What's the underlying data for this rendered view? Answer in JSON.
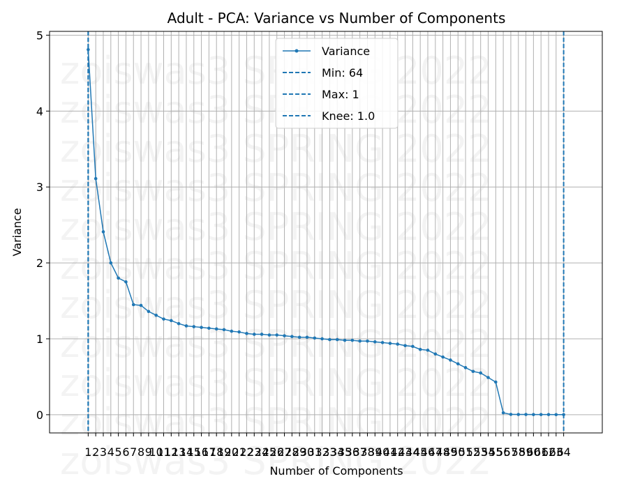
{
  "chart_data": {
    "type": "line",
    "title": "Adult - PCA: Variance vs Number of Components",
    "xlabel": "Number of Components",
    "ylabel": "Variance",
    "x": [
      1,
      2,
      3,
      4,
      5,
      6,
      7,
      8,
      9,
      10,
      11,
      12,
      13,
      14,
      15,
      16,
      17,
      18,
      19,
      20,
      21,
      22,
      23,
      24,
      25,
      26,
      27,
      28,
      29,
      30,
      31,
      32,
      33,
      34,
      35,
      36,
      37,
      38,
      39,
      40,
      41,
      42,
      43,
      44,
      45,
      46,
      47,
      48,
      49,
      50,
      51,
      52,
      53,
      54,
      55,
      56,
      57,
      58,
      59,
      60,
      61,
      62,
      63,
      64
    ],
    "x_tick_labels": [
      "1",
      "2",
      "3",
      "4",
      "5",
      "6",
      "7",
      "8",
      "9",
      "10",
      "11",
      "12",
      "13",
      "14",
      "15",
      "16",
      "17",
      "18",
      "19",
      "20",
      "21",
      "22",
      "23",
      "24",
      "25",
      "26",
      "27",
      "28",
      "29",
      "30",
      "31",
      "32",
      "33",
      "34",
      "35",
      "36",
      "37",
      "38",
      "39",
      "40",
      "41",
      "42",
      "43",
      "44",
      "45",
      "46",
      "47",
      "48",
      "49",
      "50",
      "51",
      "52",
      "53",
      "54",
      "55",
      "56",
      "57",
      "58",
      "59",
      "60",
      "61",
      "62",
      "63",
      "64"
    ],
    "y_ticks": [
      0,
      1,
      2,
      3,
      4,
      5
    ],
    "y_tick_labels": [
      "0",
      "1",
      "2",
      "3",
      "4",
      "5"
    ],
    "xlim": [
      -4.12,
      69.12
    ],
    "ylim": [
      -0.24,
      5.05
    ],
    "grid": true,
    "legend_placement": "upper center",
    "series": [
      {
        "name": "Variance",
        "color": "#1f77b4",
        "marker": "dot",
        "values": [
          4.81,
          3.11,
          2.41,
          2.0,
          1.8,
          1.75,
          1.45,
          1.44,
          1.36,
          1.31,
          1.26,
          1.24,
          1.2,
          1.17,
          1.16,
          1.15,
          1.14,
          1.13,
          1.12,
          1.1,
          1.09,
          1.07,
          1.06,
          1.06,
          1.05,
          1.05,
          1.04,
          1.03,
          1.02,
          1.02,
          1.01,
          1.0,
          0.99,
          0.99,
          0.98,
          0.98,
          0.97,
          0.97,
          0.96,
          0.95,
          0.94,
          0.93,
          0.91,
          0.9,
          0.86,
          0.85,
          0.8,
          0.76,
          0.72,
          0.67,
          0.62,
          0.57,
          0.55,
          0.49,
          0.43,
          0.025,
          0.004,
          0.003,
          0.003,
          0.002,
          0.002,
          0.002,
          0.001,
          0.001
        ]
      }
    ],
    "vlines": [
      {
        "label": "Min: 64",
        "x": 64,
        "color": "#1f77b4",
        "style": "dashed"
      },
      {
        "label": "Max: 1",
        "x": 1,
        "color": "#1f77b4",
        "style": "dashed"
      },
      {
        "label": "Knee: 1.0",
        "x": 1.0,
        "color": "#1f77b4",
        "style": "dashed"
      }
    ]
  },
  "watermark": {
    "text": "zoiswas3 SPRING 2022"
  }
}
